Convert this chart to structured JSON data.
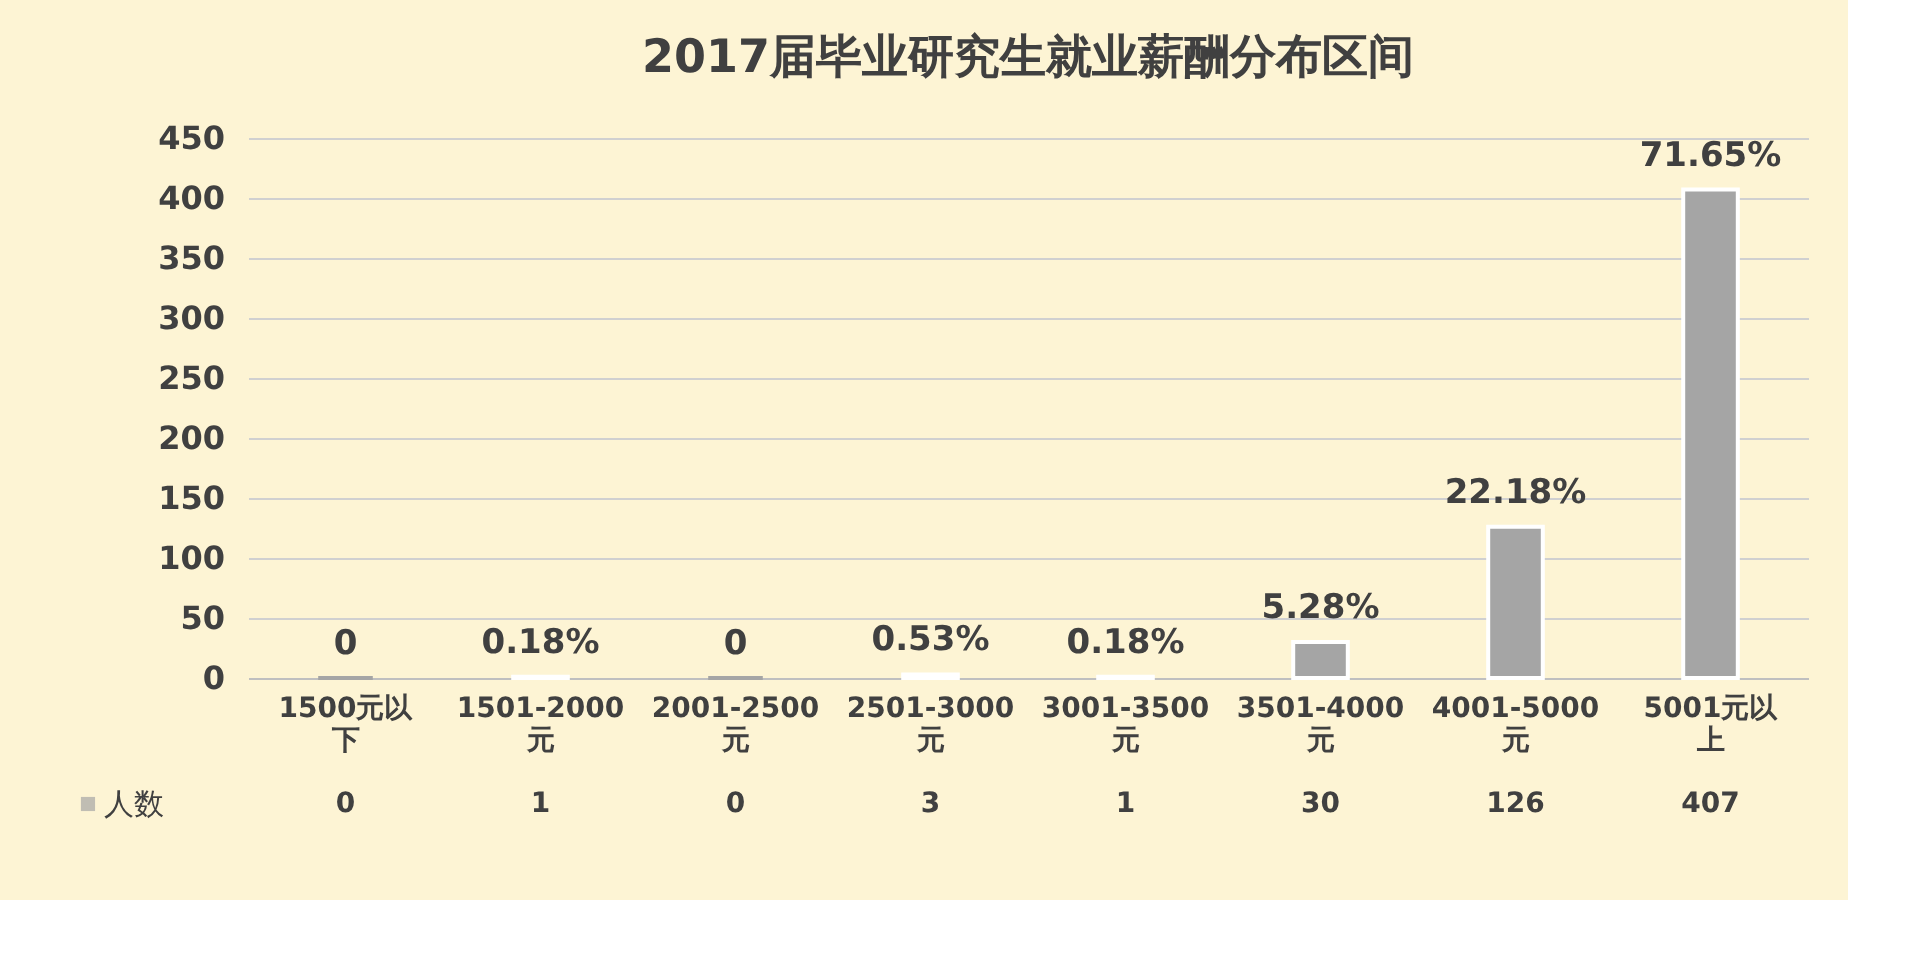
{
  "chart_data": {
    "type": "bar",
    "title": "2017届毕业研究生就业薪酬分布区间",
    "categories": [
      "1500元以下",
      "1501-2000元",
      "2001-2500元",
      "2501-3000元",
      "3001-3500元",
      "3501-4000元",
      "4001-5000元",
      "5001元以上"
    ],
    "series": [
      {
        "name": "人数",
        "color": "#a5a5a5",
        "values": [
          0,
          1,
          0,
          3,
          1,
          30,
          126,
          407
        ]
      }
    ],
    "data_labels": true,
    "annotations": [
      {
        "text": "0",
        "x": "1500元以下",
        "y": 0
      },
      {
        "text": "0.18%",
        "x": "1501-2000元",
        "y": 1
      },
      {
        "text": "0",
        "x": "2001-2500元",
        "y": 0
      },
      {
        "text": "0.53%",
        "x": "2501-3000元",
        "y": 3
      },
      {
        "text": "0.18%",
        "x": "3001-3500元",
        "y": 1
      },
      {
        "text": "5.28%",
        "x": "3501-4000元",
        "y": 30
      },
      {
        "text": "22.18%",
        "x": "4001-5000元",
        "y": 126
      },
      {
        "text": "71.65%",
        "x": "5001元以上",
        "y": 407
      }
    ],
    "ylim": [
      0,
      450
    ],
    "yticks": [
      0,
      50,
      100,
      150,
      200,
      250,
      300,
      350,
      400,
      450
    ],
    "grid": "y",
    "legend": "bottom left"
  }
}
